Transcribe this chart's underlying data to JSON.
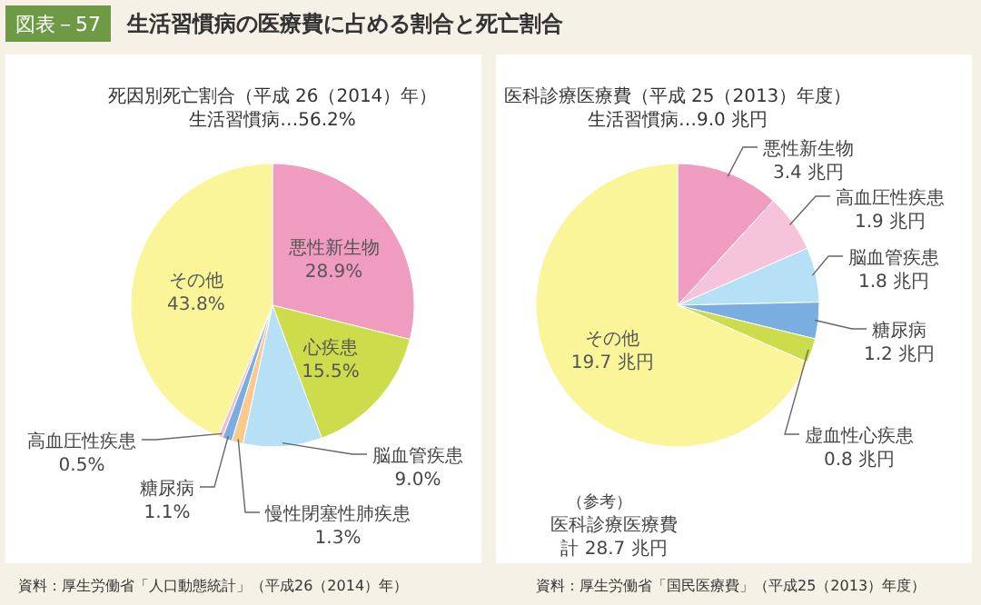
{
  "chart_data": [
    {
      "type": "pie",
      "title": "死因別死亡割合（平成 26（2014）年）",
      "subtitle": "生活習慣病…56.2%",
      "categories": [
        "悪性新生物",
        "心疾患",
        "脳血管疾患",
        "慢性閉塞性肺疾患",
        "糖尿病",
        "高血圧性疾患",
        "その他"
      ],
      "values": [
        28.9,
        15.5,
        9.0,
        1.3,
        1.1,
        0.5,
        43.8
      ],
      "value_labels": [
        "28.9%",
        "15.5%",
        "9.0%",
        "1.3%",
        "1.1%",
        "0.5%",
        "43.8%"
      ],
      "colors": [
        "#f09bc0",
        "#cddc4a",
        "#b6e0f5",
        "#f9c98e",
        "#7aaee0",
        "#f3bcd8",
        "#fbf59a"
      ],
      "annotations": [
        "図表－57",
        "生活習慣病の医療費に占める割合と死亡割合",
        "資料：厚生労働省「人口動態統計」（平成26（2014）年）"
      ]
    },
    {
      "type": "pie",
      "title": "医科診療医療費（平成 25（2013）年度）",
      "subtitle": "生活習慣病…9.0 兆円",
      "categories": [
        "悪性新生物",
        "高血圧性疾患",
        "脳血管疾患",
        "糖尿病",
        "虚血性心疾患",
        "その他"
      ],
      "values": [
        3.4,
        1.9,
        1.8,
        1.2,
        0.8,
        19.7
      ],
      "value_labels": [
        "3.4 兆円",
        "1.9 兆円",
        "1.8 兆円",
        "1.2 兆円",
        "0.8 兆円",
        "19.7 兆円"
      ],
      "colors": [
        "#f09bc0",
        "#f6c4da",
        "#b6e0f5",
        "#7aaee0",
        "#cddc4a",
        "#fbf59a"
      ],
      "annotations": [
        "（参考）",
        "医科診療医療費",
        "計 28.7 兆円",
        "資料：厚生労働省「国民医療費」（平成25（2013）年度）"
      ]
    }
  ]
}
